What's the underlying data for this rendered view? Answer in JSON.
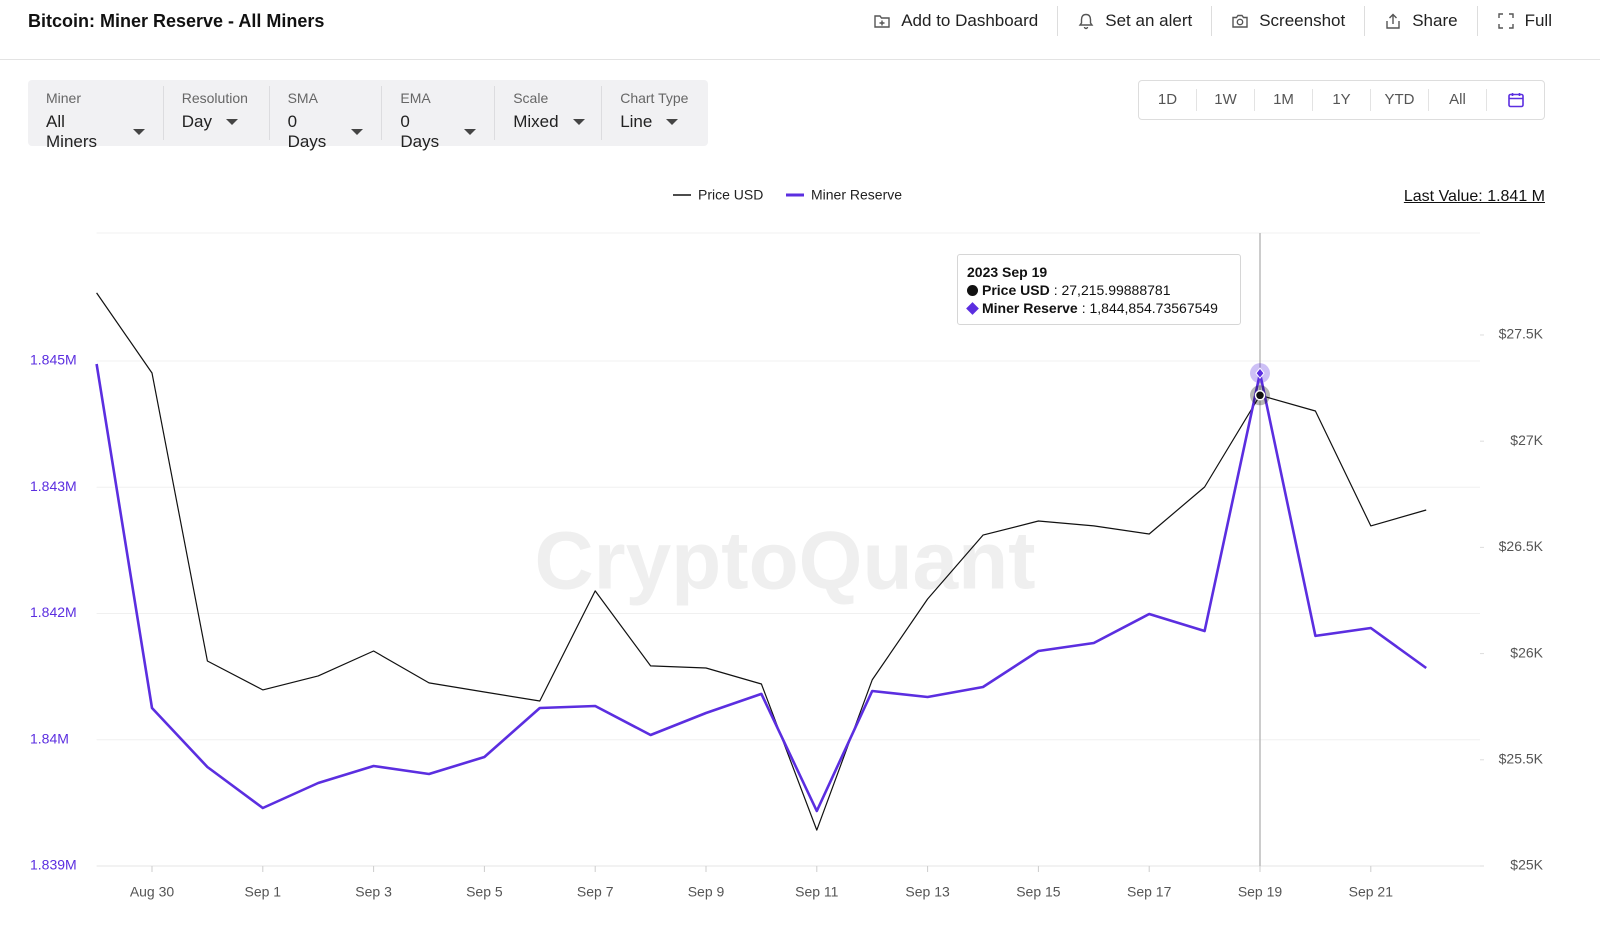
{
  "header": {
    "title": "Bitcoin: Miner Reserve - All Miners",
    "actions": [
      "Add to Dashboard",
      "Set an alert",
      "Screenshot",
      "Share",
      "Full"
    ]
  },
  "controls": [
    {
      "label": "Miner",
      "value": "All Miners"
    },
    {
      "label": "Resolution",
      "value": "Day"
    },
    {
      "label": "SMA",
      "value": "0 Days"
    },
    {
      "label": "EMA",
      "value": "0 Days"
    },
    {
      "label": "Scale",
      "value": "Mixed"
    },
    {
      "label": "Chart Type",
      "value": "Line"
    }
  ],
  "ranges": [
    "1D",
    "1W",
    "1M",
    "1Y",
    "YTD",
    "All"
  ],
  "chart_data": {
    "type": "line",
    "last_value_label": "Last Value: 1.841 M",
    "watermark": "CryptoQuant",
    "categories": [
      null,
      "Aug 30",
      null,
      "Sep 1",
      null,
      "Sep 3",
      null,
      "Sep 5",
      null,
      "Sep 7",
      null,
      "Sep 9",
      null,
      "Sep 11",
      null,
      "Sep 13",
      null,
      "Sep 15",
      null,
      "Sep 17",
      null,
      "Sep 19",
      null,
      "Sep 21",
      null
    ],
    "series": [
      {
        "name": "Price USD",
        "color": "#111111",
        "axis": "y2",
        "values": [
          27698,
          27321,
          25965,
          25829,
          25895,
          26012,
          25862,
          25819,
          25777,
          26295,
          25942,
          25932,
          25857,
          25169,
          25876,
          26257,
          26558,
          26624,
          26601,
          26563,
          26784,
          27215.99888781,
          27142,
          26601,
          26676
        ]
      },
      {
        "name": "Miner Reserve",
        "color": "#5b2ee0",
        "values": [
          1844964,
          1840877,
          1840176,
          1839689,
          1839986,
          1840188,
          1840093,
          1840295,
          1840877,
          1840901,
          1840556,
          1840818,
          1841044,
          1839653,
          1841079,
          1841008,
          1841127,
          1841554,
          1841649,
          1841994,
          1841792,
          1844854.73567549,
          1841733,
          1841828,
          1841352
        ]
      }
    ],
    "ylim": [
      1839000,
      1846520
    ],
    "yticks": [
      {
        "value": 1839000,
        "label": "1.839M"
      },
      {
        "value": 1840500,
        "label": "1.84M"
      },
      {
        "value": 1842000,
        "label": "1.842M"
      },
      {
        "value": 1843500,
        "label": "1.843M"
      },
      {
        "value": 1845000,
        "label": "1.845M"
      }
    ],
    "y2lim": [
      25000,
      27980
    ],
    "y2ticks": [
      {
        "value": 25000,
        "label": "$25K"
      },
      {
        "value": 25500,
        "label": "$25.5K"
      },
      {
        "value": 26000,
        "label": "$26K"
      },
      {
        "value": 26500,
        "label": "$26.5K"
      },
      {
        "value": 27000,
        "label": "$27K"
      },
      {
        "value": 27500,
        "label": "$27.5K"
      }
    ],
    "grid": true,
    "tooltip": {
      "title": "2023 Sep 19",
      "index": 21,
      "value_labels": [
        "27,215.99888781",
        "1,844,854.73567549"
      ]
    }
  }
}
